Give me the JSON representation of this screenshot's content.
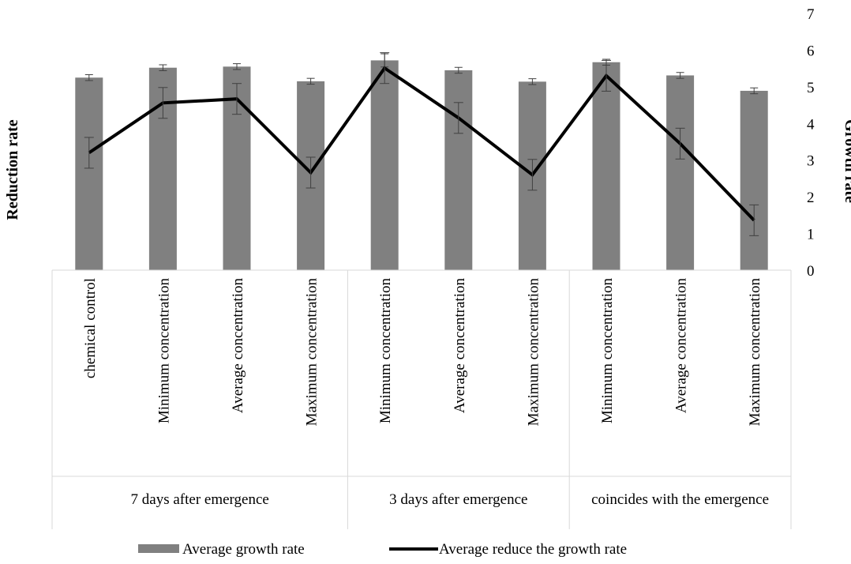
{
  "chart_data": {
    "type": "bar",
    "title": "",
    "y_left_label": "Reduction rate",
    "y_right_label": "Growth rate",
    "ylim": [
      0,
      7
    ],
    "y_ticks": [
      "0",
      "1",
      "2",
      "3",
      "4",
      "5",
      "6",
      "7"
    ],
    "legend_position": "bottom",
    "categories": [
      "chemical control",
      "Minimum concentration",
      "Average concentration",
      "Maximum concentration",
      "Minimum concentration",
      "Average concentration",
      "Maximum concentration",
      "Minimum concentration",
      "Average concentration",
      "Maximum concentration"
    ],
    "groups": [
      {
        "label": "7 days after emergence",
        "count": 4
      },
      {
        "label": "3 days after emergence",
        "count": 3
      },
      {
        "label": "coincides with  the emergence",
        "count": 3
      }
    ],
    "series": [
      {
        "name": "Average growth rate",
        "kind": "bar",
        "color": "#808080",
        "values": [
          5.25,
          5.52,
          5.55,
          5.15,
          5.72,
          5.45,
          5.14,
          5.67,
          5.31,
          4.89
        ],
        "errors": [
          0.08,
          0.08,
          0.08,
          0.08,
          0.18,
          0.08,
          0.08,
          0.08,
          0.08,
          0.08
        ]
      },
      {
        "name": "Average reduce the growth rate",
        "kind": "line",
        "color": "#000000",
        "values": [
          3.2,
          4.56,
          4.67,
          2.66,
          5.51,
          4.15,
          2.6,
          5.3,
          3.45,
          1.36
        ],
        "errors": [
          0.42,
          0.42,
          0.42,
          0.42,
          0.42,
          0.42,
          0.42,
          0.42,
          0.42,
          0.42
        ]
      }
    ]
  }
}
